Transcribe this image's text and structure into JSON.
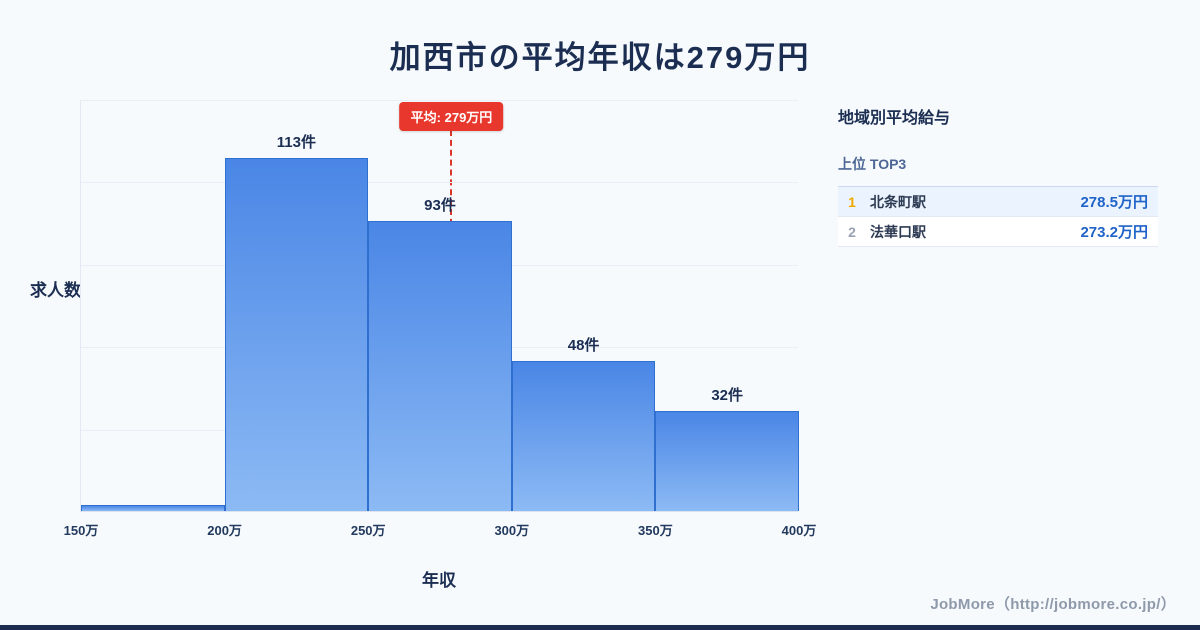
{
  "page": {
    "title": "加西市の平均年収は279万円",
    "footer_credit": "JobMore（http://jobmore.co.jp/）"
  },
  "chart_data": {
    "type": "bar",
    "title": "加西市の平均年収は279万円",
    "xlabel": "年収",
    "ylabel": "求人数",
    "bin_edges": [
      "150万",
      "200万",
      "250万",
      "300万",
      "350万",
      "400万"
    ],
    "values": [
      2,
      113,
      93,
      48,
      32
    ],
    "bar_labels": [
      "",
      "113件",
      "93件",
      "48件",
      "32件"
    ],
    "x_range": [
      150,
      400
    ],
    "ylim": [
      0,
      132
    ],
    "grid": true,
    "legend": "none",
    "average_value": 279,
    "average_label": "平均: 279万円",
    "bar_color_top": "#4a86e6",
    "bar_color_bottom": "#8cbaf4",
    "bar_border_color": "#2e6fd0",
    "average_line_color": "#d9372b",
    "average_badge_color": "#e8382d"
  },
  "sidebar": {
    "heading": "地域別平均給与",
    "subheading": "上位 TOP3",
    "rank_colors": [
      "#f0a800",
      "#98a2b3"
    ],
    "rows": [
      {
        "rank": "1",
        "name": "北条町駅",
        "value": "278.5万円"
      },
      {
        "rank": "2",
        "name": "法華口駅",
        "value": "273.2万円"
      }
    ]
  }
}
